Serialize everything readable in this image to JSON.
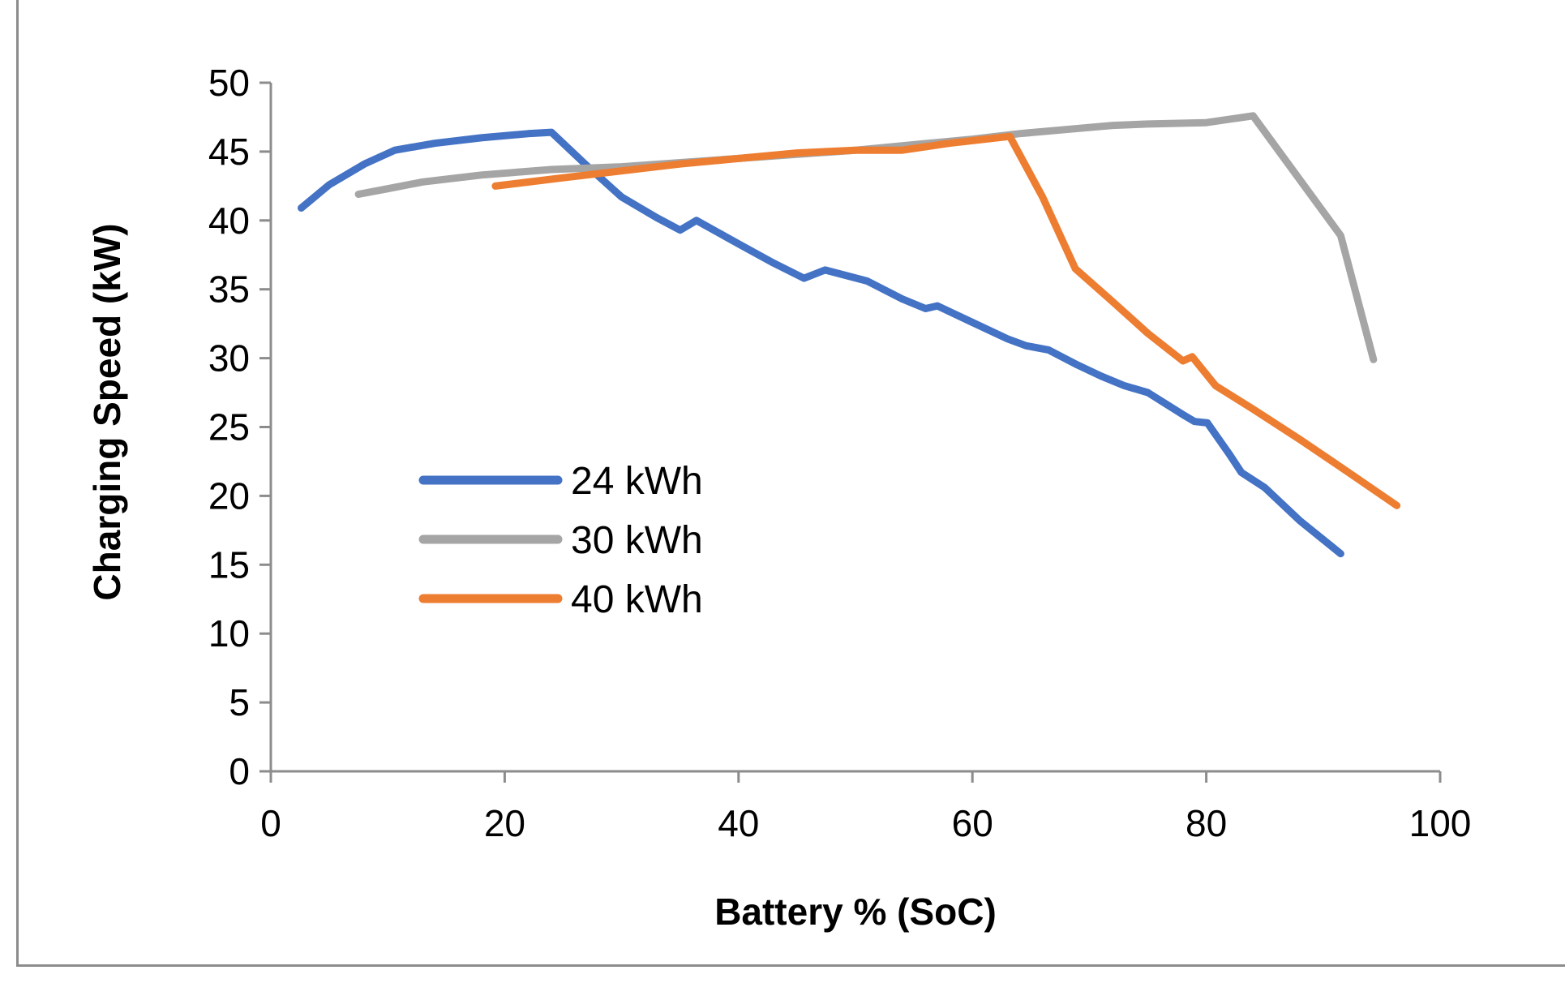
{
  "chart_data": {
    "type": "line",
    "title": "",
    "xlabel": "Battery % (SoC)",
    "ylabel": "Charging Speed (kW)",
    "xlim": [
      0,
      100
    ],
    "ylim": [
      0,
      50
    ],
    "xticks": [
      0,
      20,
      40,
      60,
      80,
      100
    ],
    "yticks": [
      0,
      5,
      10,
      15,
      20,
      25,
      30,
      35,
      40,
      45,
      50
    ],
    "grid": false,
    "legend_position": "left-middle",
    "series": [
      {
        "name": "24 kWh",
        "color": "#4472C4",
        "x": [
          2.6,
          5,
          8,
          10.6,
          14,
          18,
          22,
          24,
          27,
          30,
          33,
          35,
          36.4,
          40,
          43,
          45.6,
          47.4,
          51,
          54,
          56,
          57,
          60,
          63,
          64.6,
          66.5,
          69,
          71,
          73,
          75,
          78,
          79,
          80.1,
          82,
          83,
          85,
          88,
          91.5
        ],
        "y": [
          40.9,
          42.6,
          44.1,
          45.1,
          45.6,
          46,
          46.3,
          46.4,
          44,
          41.7,
          40.2,
          39.3,
          40,
          38.3,
          36.9,
          35.8,
          36.4,
          35.6,
          34.3,
          33.6,
          33.8,
          32.6,
          31.4,
          30.9,
          30.6,
          29.5,
          28.7,
          28,
          27.5,
          25.9,
          25.4,
          25.3,
          23,
          21.7,
          20.6,
          18.2,
          15.8
        ]
      },
      {
        "name": "30 kWh",
        "color": "#A5A5A5",
        "x": [
          7.5,
          10,
          13,
          18,
          24,
          30,
          40,
          50,
          60,
          64,
          68,
          72,
          75,
          80,
          84,
          91.5,
          94.3
        ],
        "y": [
          41.9,
          42.3,
          42.8,
          43.3,
          43.7,
          43.9,
          44.5,
          45.1,
          45.9,
          46.3,
          46.6,
          46.9,
          47,
          47.1,
          47.6,
          38.9,
          29.9
        ]
      },
      {
        "name": "40 kWh",
        "color": "#ED7D31",
        "x": [
          19.2,
          25,
          30,
          35,
          40,
          45,
          50,
          54,
          58,
          63.2,
          66,
          68.8,
          72,
          75,
          78,
          78.8,
          80.8,
          84,
          88,
          92,
          96.3
        ],
        "y": [
          42.5,
          43.1,
          43.6,
          44.1,
          44.5,
          44.9,
          45.1,
          45.1,
          45.6,
          46.1,
          41.7,
          36.5,
          34.1,
          31.8,
          29.8,
          30.1,
          28,
          26.3,
          24.1,
          21.8,
          19.3
        ]
      }
    ]
  }
}
